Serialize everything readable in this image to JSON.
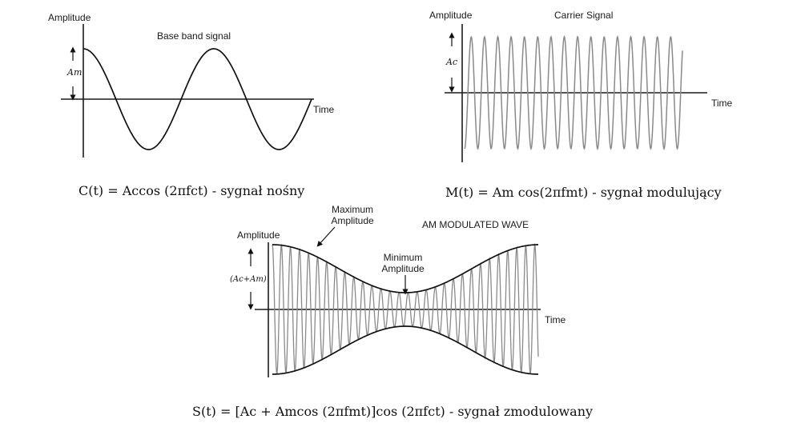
{
  "diagrams": {
    "baseband": {
      "amplitude_label": "Amplitude",
      "title": "Base band signal",
      "time_label": "Time",
      "amp_symbol": "Am"
    },
    "carrier": {
      "amplitude_label": "Amplitude",
      "title": "Carrier Signal",
      "time_label": "Time",
      "amp_symbol": "Ac"
    },
    "modulated": {
      "amplitude_label": "Amplitude",
      "title": "AM MODULATED WAVE",
      "time_label": "Time",
      "amp_symbol": "(Ac+Am)",
      "max_label_line1": "Maximum",
      "max_label_line2": "Amplitude",
      "min_label_line1": "Minimum",
      "min_label_line2": "Amplitude"
    }
  },
  "equations": {
    "carrier_eq": "C(t) = Accos (2πfct) -  sygnał nośny",
    "message_eq": "M(t) = Am cos(2πfmt) - sygnał modulujący",
    "modulated_eq": "S(t) = [Ac + Amcos (2πfmt)]cos (2πfct) - sygnał zmodulowany"
  },
  "colors": {
    "axis": "#1a1a1a",
    "signal": "#111111",
    "carrier_wave": "#8a8a8a"
  }
}
